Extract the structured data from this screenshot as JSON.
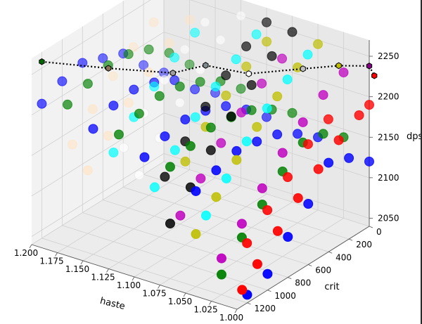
{
  "chart_data": {
    "type": "scatter3d",
    "xlabel": "haste",
    "ylabel": "crit",
    "zlabel": "dps",
    "xlim": [
      1.0,
      1.2
    ],
    "ylim": [
      0,
      1300
    ],
    "zlim": [
      2040,
      2270
    ],
    "x_ticks": [
      "1.200",
      "1.175",
      "1.150",
      "1.125",
      "1.100",
      "1.075",
      "1.050",
      "1.025",
      "1.000"
    ],
    "y_ticks": [
      "0",
      "200",
      "400",
      "600",
      "800",
      "1000",
      "1200"
    ],
    "z_ticks": [
      "2050",
      "2100",
      "2150",
      "2200",
      "2250"
    ],
    "grid": true,
    "series": [
      {
        "color": "#0000ff",
        "points": [
          [
            1.2,
            0,
            2150
          ],
          [
            1.2,
            200,
            2175
          ],
          [
            1.2,
            400,
            2205
          ],
          [
            1.2,
            600,
            2215
          ],
          [
            1.2,
            800,
            2225
          ],
          [
            1.2,
            1000,
            2218
          ],
          [
            1.2,
            1200,
            2206
          ],
          [
            1.15,
            0,
            2145
          ],
          [
            1.15,
            200,
            2165
          ],
          [
            1.15,
            400,
            2192
          ],
          [
            1.15,
            600,
            2205
          ],
          [
            1.15,
            800,
            2212
          ],
          [
            1.15,
            1000,
            2208
          ],
          [
            1.15,
            1200,
            2195
          ],
          [
            1.1,
            0,
            2135
          ],
          [
            1.1,
            200,
            2160
          ],
          [
            1.1,
            400,
            2180
          ],
          [
            1.1,
            600,
            2190
          ],
          [
            1.1,
            800,
            2195
          ],
          [
            1.1,
            1000,
            2190
          ],
          [
            1.1,
            1200,
            2180
          ],
          [
            1.05,
            0,
            2130
          ],
          [
            1.05,
            200,
            2150
          ],
          [
            1.05,
            400,
            2165
          ],
          [
            1.05,
            600,
            2172
          ],
          [
            1.05,
            800,
            2176
          ],
          [
            1.05,
            1000,
            2168
          ],
          [
            1.05,
            1200,
            2158
          ],
          [
            1.0,
            0,
            2120
          ],
          [
            1.0,
            200,
            2140
          ],
          [
            1.0,
            400,
            2150
          ],
          [
            1.0,
            600,
            2115
          ],
          [
            1.0,
            800,
            2090
          ],
          [
            1.0,
            1000,
            2060
          ],
          [
            1.0,
            1200,
            2050
          ]
        ]
      },
      {
        "color": "#008000",
        "points": [
          [
            1.175,
            0,
            2170
          ],
          [
            1.175,
            200,
            2200
          ],
          [
            1.175,
            400,
            2220
          ],
          [
            1.175,
            600,
            2230
          ],
          [
            1.175,
            800,
            2232
          ],
          [
            1.175,
            1000,
            2225
          ],
          [
            1.175,
            1200,
            2215
          ],
          [
            1.125,
            0,
            2160
          ],
          [
            1.125,
            200,
            2185
          ],
          [
            1.125,
            400,
            2200
          ],
          [
            1.125,
            600,
            2210
          ],
          [
            1.125,
            800,
            2214
          ],
          [
            1.125,
            1000,
            2208
          ],
          [
            1.125,
            1200,
            2198
          ],
          [
            1.075,
            0,
            2150
          ],
          [
            1.075,
            200,
            2170
          ],
          [
            1.075,
            400,
            2185
          ],
          [
            1.075,
            600,
            2192
          ],
          [
            1.075,
            800,
            2195
          ],
          [
            1.075,
            1000,
            2188
          ],
          [
            1.075,
            1200,
            2178
          ],
          [
            1.025,
            0,
            2140
          ],
          [
            1.025,
            200,
            2160
          ],
          [
            1.025,
            400,
            2165
          ],
          [
            1.025,
            600,
            2145
          ],
          [
            1.025,
            800,
            2120
          ],
          [
            1.025,
            1000,
            2095
          ],
          [
            1.025,
            1200,
            2065
          ]
        ]
      },
      {
        "color": "#ff0000",
        "points": [
          [
            1.0,
            0,
            2190
          ],
          [
            1.0,
            100,
            2185
          ],
          [
            1.0,
            300,
            2170
          ],
          [
            1.0,
            500,
            2150
          ],
          [
            1.0,
            700,
            2130
          ],
          [
            1.0,
            900,
            2105
          ],
          [
            1.0,
            1100,
            2080
          ],
          [
            1.0,
            1250,
            2060
          ],
          [
            1.02,
            200,
            2180
          ],
          [
            1.02,
            400,
            2165
          ],
          [
            1.02,
            600,
            2140
          ],
          [
            1.02,
            800,
            2115
          ],
          [
            1.02,
            1000,
            2090
          ]
        ]
      },
      {
        "color": "#00ffff",
        "points": [
          [
            1.05,
            100,
            2240
          ],
          [
            1.05,
            300,
            2225
          ],
          [
            1.05,
            500,
            2205
          ],
          [
            1.05,
            700,
            2180
          ],
          [
            1.05,
            900,
            2150
          ],
          [
            1.05,
            1100,
            2120
          ],
          [
            1.1,
            100,
            2245
          ],
          [
            1.1,
            300,
            2230
          ],
          [
            1.1,
            500,
            2212
          ],
          [
            1.1,
            700,
            2190
          ],
          [
            1.1,
            900,
            2165
          ],
          [
            1.1,
            1100,
            2135
          ],
          [
            1.15,
            200,
            2235
          ],
          [
            1.15,
            400,
            2220
          ],
          [
            1.15,
            600,
            2200
          ],
          [
            1.15,
            800,
            2178
          ],
          [
            1.15,
            1000,
            2150
          ]
        ]
      },
      {
        "color": "#bf00bf",
        "points": [
          [
            1.025,
            0,
            2220
          ],
          [
            1.025,
            200,
            2208
          ],
          [
            1.025,
            400,
            2190
          ],
          [
            1.025,
            600,
            2168
          ],
          [
            1.025,
            800,
            2140
          ],
          [
            1.025,
            1000,
            2112
          ],
          [
            1.025,
            1200,
            2085
          ],
          [
            1.075,
            100,
            2225
          ],
          [
            1.075,
            300,
            2210
          ],
          [
            1.075,
            500,
            2190
          ],
          [
            1.075,
            700,
            2168
          ],
          [
            1.075,
            900,
            2140
          ],
          [
            1.075,
            1100,
            2110
          ]
        ]
      },
      {
        "color": "#bfbf00",
        "points": [
          [
            1.05,
            0,
            2245
          ],
          [
            1.05,
            200,
            2232
          ],
          [
            1.05,
            400,
            2212
          ],
          [
            1.05,
            600,
            2190
          ],
          [
            1.05,
            800,
            2165
          ],
          [
            1.05,
            1000,
            2135
          ],
          [
            1.05,
            1200,
            2105
          ],
          [
            1.09,
            100,
            2240
          ],
          [
            1.09,
            300,
            2225
          ],
          [
            1.09,
            500,
            2205
          ],
          [
            1.09,
            700,
            2182
          ],
          [
            1.09,
            900,
            2155
          ]
        ]
      },
      {
        "color": "#000000",
        "points": [
          [
            1.075,
            0,
            2250
          ],
          [
            1.075,
            200,
            2236
          ],
          [
            1.075,
            400,
            2216
          ],
          [
            1.075,
            600,
            2193
          ],
          [
            1.075,
            800,
            2167
          ],
          [
            1.075,
            1000,
            2137
          ],
          [
            1.075,
            1200,
            2108
          ],
          [
            1.1,
            0,
            2252
          ],
          [
            1.1,
            200,
            2238
          ],
          [
            1.1,
            400,
            2218
          ],
          [
            1.1,
            600,
            2195
          ],
          [
            1.1,
            800,
            2168
          ],
          [
            1.1,
            1000,
            2140
          ]
        ]
      },
      {
        "color": "#ffffff",
        "points": [
          [
            1.125,
            0,
            2250
          ],
          [
            1.125,
            200,
            2236
          ],
          [
            1.125,
            400,
            2215
          ],
          [
            1.125,
            600,
            2190
          ],
          [
            1.125,
            800,
            2162
          ],
          [
            1.125,
            1000,
            2132
          ],
          [
            1.15,
            100,
            2240
          ],
          [
            1.15,
            300,
            2222
          ],
          [
            1.15,
            500,
            2200
          ],
          [
            1.15,
            700,
            2175
          ],
          [
            1.15,
            900,
            2148
          ]
        ]
      },
      {
        "color": "#ffe4c4",
        "points": [
          [
            1.175,
            0,
            2225
          ],
          [
            1.175,
            200,
            2212
          ],
          [
            1.175,
            400,
            2192
          ],
          [
            1.175,
            600,
            2170
          ],
          [
            1.175,
            800,
            2145
          ],
          [
            1.175,
            1000,
            2118
          ],
          [
            1.2,
            100,
            2220
          ],
          [
            1.2,
            300,
            2205
          ],
          [
            1.2,
            500,
            2185
          ],
          [
            1.2,
            700,
            2160
          ],
          [
            1.2,
            900,
            2132
          ]
        ]
      }
    ],
    "frontier": {
      "style": "dotted",
      "color": "#000000",
      "points": [
        [
          1.2,
          1200,
          2258
        ],
        [
          1.15,
          1050,
          2258
        ],
        [
          1.11,
          820,
          2250
        ],
        [
          1.09,
          700,
          2258
        ],
        [
          1.05,
          680,
          2262
        ],
        [
          1.02,
          450,
          2262
        ],
        [
          1.0,
          300,
          2262
        ],
        [
          1.0,
          0,
          2238
        ],
        [
          1.0,
          -50,
          2222
        ]
      ],
      "marker_colors": [
        "#006400",
        "#8b7355",
        "#a0a0a0",
        "#7f8c8d",
        "#ffffff",
        "#c0c0c0",
        "#bfbf00",
        "#800080",
        "#ff0000"
      ]
    }
  }
}
